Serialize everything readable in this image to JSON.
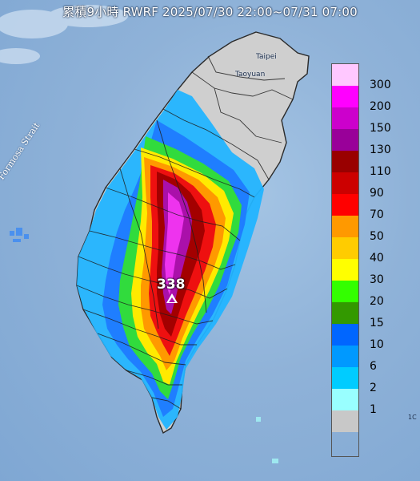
{
  "title": "累積9小時 RWRF 2025/07/30 22:00~07/31 07:00",
  "places": {
    "taipei": "Taipei",
    "taoyuan": "Taoyuan",
    "strait": "Formosa Strait",
    "edge_mark": "1C"
  },
  "peak": {
    "value": "338"
  },
  "legend": {
    "items": [
      {
        "label": "300",
        "color": "#ffc8ff"
      },
      {
        "label": "200",
        "color": "#ff00ff"
      },
      {
        "label": "150",
        "color": "#cc00cc"
      },
      {
        "label": "130",
        "color": "#990099"
      },
      {
        "label": "110",
        "color": "#990000"
      },
      {
        "label": "90",
        "color": "#cc0000"
      },
      {
        "label": "70",
        "color": "#ff0000"
      },
      {
        "label": "50",
        "color": "#ff9900"
      },
      {
        "label": "40",
        "color": "#ffcc00"
      },
      {
        "label": "30",
        "color": "#ffff00"
      },
      {
        "label": "20",
        "color": "#33ff00"
      },
      {
        "label": "15",
        "color": "#339900"
      },
      {
        "label": "10",
        "color": "#0066ff"
      },
      {
        "label": "6",
        "color": "#0099ff"
      },
      {
        "label": "2",
        "color": "#00ccff"
      },
      {
        "label": "1",
        "color": "#99ffff"
      },
      {
        "label": "",
        "color": "#c8c8c8"
      }
    ]
  }
}
